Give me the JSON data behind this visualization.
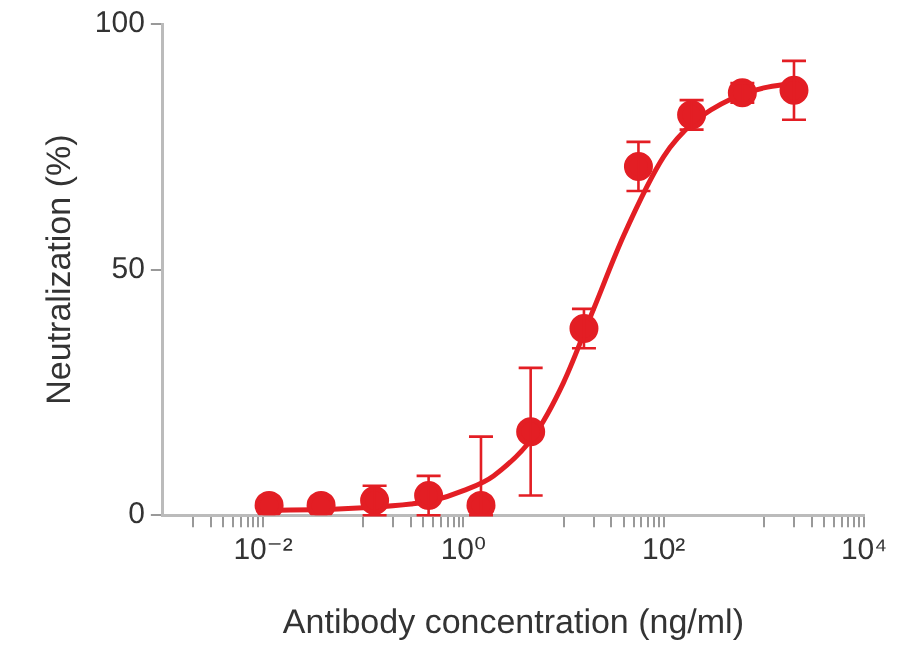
{
  "chart_data": {
    "type": "scatter",
    "xlabel": "Antibody concentration (ng/ml)",
    "ylabel": "Neutralization (%)",
    "log": "x",
    "xlim": [
      0.001,
      10000
    ],
    "xticks": [
      {
        "value": 0.002,
        "label": null
      },
      {
        "value": 0.003,
        "label": null
      },
      {
        "value": 0.004,
        "label": null
      },
      {
        "value": 0.005,
        "label": null
      },
      {
        "value": 0.006,
        "label": null
      },
      {
        "value": 0.007,
        "label": null
      },
      {
        "value": 0.008,
        "label": null
      },
      {
        "value": 0.009,
        "label": null
      },
      {
        "value": 0.01,
        "label": "10⁻²"
      },
      {
        "value": 0.1,
        "label": null
      },
      {
        "value": 0.2,
        "label": null
      },
      {
        "value": 0.3,
        "label": null
      },
      {
        "value": 0.4,
        "label": null
      },
      {
        "value": 0.5,
        "label": null
      },
      {
        "value": 0.6,
        "label": null
      },
      {
        "value": 0.7,
        "label": null
      },
      {
        "value": 0.8,
        "label": null
      },
      {
        "value": 0.9,
        "label": null
      },
      {
        "value": 1,
        "label": "10⁰"
      },
      {
        "value": 10,
        "label": null
      },
      {
        "value": 20,
        "label": null
      },
      {
        "value": 30,
        "label": null
      },
      {
        "value": 40,
        "label": null
      },
      {
        "value": 50,
        "label": null
      },
      {
        "value": 60,
        "label": null
      },
      {
        "value": 70,
        "label": null
      },
      {
        "value": 80,
        "label": null
      },
      {
        "value": 90,
        "label": null
      },
      {
        "value": 100,
        "label": "10²"
      },
      {
        "value": 1000,
        "label": null
      },
      {
        "value": 2000,
        "label": null
      },
      {
        "value": 3000,
        "label": null
      },
      {
        "value": 4000,
        "label": null
      },
      {
        "value": 5000,
        "label": null
      },
      {
        "value": 6000,
        "label": null
      },
      {
        "value": 7000,
        "label": null
      },
      {
        "value": 8000,
        "label": null
      },
      {
        "value": 9000,
        "label": null
      },
      {
        "value": 10000,
        "label": "10⁴"
      }
    ],
    "ylim": [
      0,
      100
    ],
    "yticks": [
      0,
      50,
      100
    ],
    "grid": false,
    "legend": false,
    "marker": "circle",
    "series": [
      {
        "type": "scatter",
        "color": "#e31e24",
        "x": [
          0.0115,
          0.038,
          0.13,
          0.45,
          1.5,
          4.7,
          16,
          56,
          190,
          610,
          2000
        ],
        "values": [
          2,
          2,
          3,
          4,
          2,
          17,
          38,
          71,
          81.5,
          86,
          86.5
        ],
        "errors": [
          null,
          null,
          3,
          4,
          [
            0,
            16
          ],
          13,
          4,
          5,
          3,
          2,
          6
        ]
      },
      {
        "type": "line",
        "color": "#e31e24",
        "marker": "none",
        "line_style": "solid",
        "x": [
          0.0115,
          0.05,
          0.1,
          0.3,
          0.5,
          1,
          2,
          5,
          10,
          20,
          40,
          100,
          200,
          500,
          1000,
          2000
        ],
        "values": [
          1,
          1.2,
          1.5,
          2.3,
          3,
          5,
          8,
          16,
          27,
          42,
          57,
          73,
          80,
          85,
          87,
          88
        ]
      }
    ]
  }
}
